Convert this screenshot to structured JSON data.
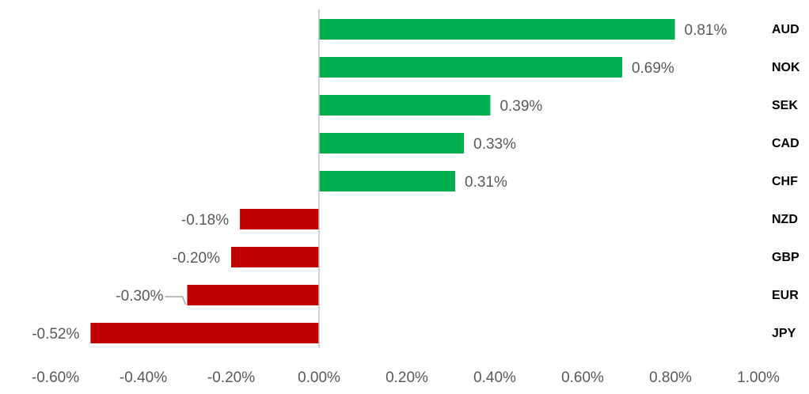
{
  "chart_data": {
    "type": "bar",
    "orientation": "horizontal",
    "categories": [
      "AUD",
      "NOK",
      "SEK",
      "CAD",
      "CHF",
      "NZD",
      "GBP",
      "EUR",
      "JPY"
    ],
    "values": [
      0.81,
      0.69,
      0.39,
      0.33,
      0.31,
      -0.18,
      -0.2,
      -0.3,
      -0.52
    ],
    "value_labels": [
      "0.81%",
      "0.69%",
      "0.39%",
      "0.33%",
      "0.31%",
      "-0.18%",
      "-0.20%",
      "-0.30%",
      "-0.52%"
    ],
    "positive_color": "#00b050",
    "negative_color": "#c00000",
    "xlim": [
      -0.6,
      1.0
    ],
    "xticks": [
      {
        "value": -0.6,
        "label": "-0.60%"
      },
      {
        "value": -0.4,
        "label": "-0.40%"
      },
      {
        "value": -0.2,
        "label": "-0.20%"
      },
      {
        "value": 0,
        "label": "0.00%"
      },
      {
        "value": 0.2,
        "label": "0.20%"
      },
      {
        "value": 0.4,
        "label": "0.40%"
      },
      {
        "value": 0.6,
        "label": "0.60%"
      },
      {
        "value": 0.8,
        "label": "0.80%"
      },
      {
        "value": 1.0,
        "label": "1.00%"
      }
    ],
    "grid": false
  }
}
